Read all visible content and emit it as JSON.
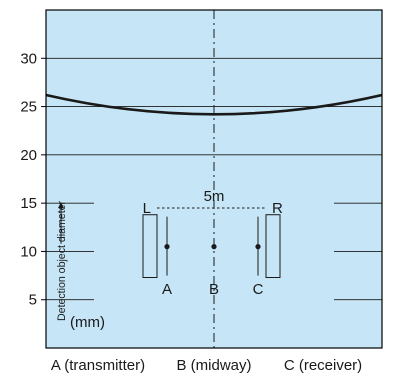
{
  "chart_data": {
    "type": "line",
    "title": "",
    "xlabel": "",
    "ylabel": "Detection object diameter",
    "unit": "(mm)",
    "ylim": [
      0,
      35
    ],
    "yticks": [
      5,
      10,
      15,
      20,
      25,
      30
    ],
    "x_categories": [
      "A (transmitter)",
      "B (midway)",
      "C (receiver)"
    ],
    "series": [
      {
        "x": [
          0,
          0.5,
          1
        ],
        "y": [
          26.2,
          24.2,
          26.2
        ]
      }
    ],
    "grid": true,
    "colors": {
      "background": "#c6e6f7",
      "grid": "#1a1a1a",
      "curve": "#1a1a1a",
      "axis": "#000000"
    },
    "inset": {
      "distance_label": "5m",
      "left_label": "L",
      "right_label": "R",
      "point_labels": [
        "A",
        "B",
        "C"
      ]
    }
  }
}
